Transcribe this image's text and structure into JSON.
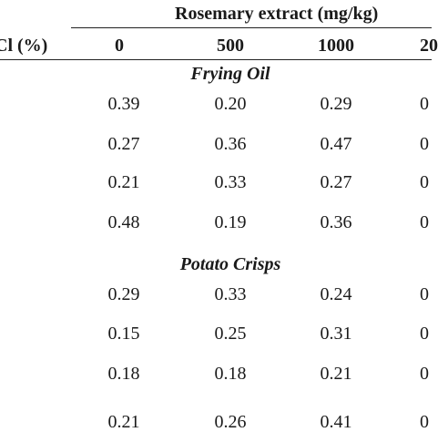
{
  "table": {
    "group_header": "Rosemary extract (mg/kg)",
    "row_header": "Cl (%)",
    "columns": [
      "0",
      "500",
      "1000",
      "20"
    ],
    "sections": [
      {
        "title": "Frying Oil",
        "rows": [
          [
            "0.39",
            "0.20",
            "0.29",
            "0"
          ],
          [
            "0.27",
            "0.36",
            "0.47",
            "0"
          ],
          [
            "0.21",
            "0.33",
            "0.27",
            "0"
          ],
          [
            "0.48",
            "0.19",
            "0.36",
            "0"
          ]
        ]
      },
      {
        "title": "Potato Crisps",
        "rows": [
          [
            "0.29",
            "0.33",
            "0.24",
            "0"
          ],
          [
            "0.15",
            "0.25",
            "0.31",
            "0"
          ],
          [
            "0.18",
            "0.18",
            "0.21",
            "0"
          ],
          [
            "0.21",
            "0.26",
            "0.41",
            "0"
          ]
        ]
      }
    ]
  }
}
